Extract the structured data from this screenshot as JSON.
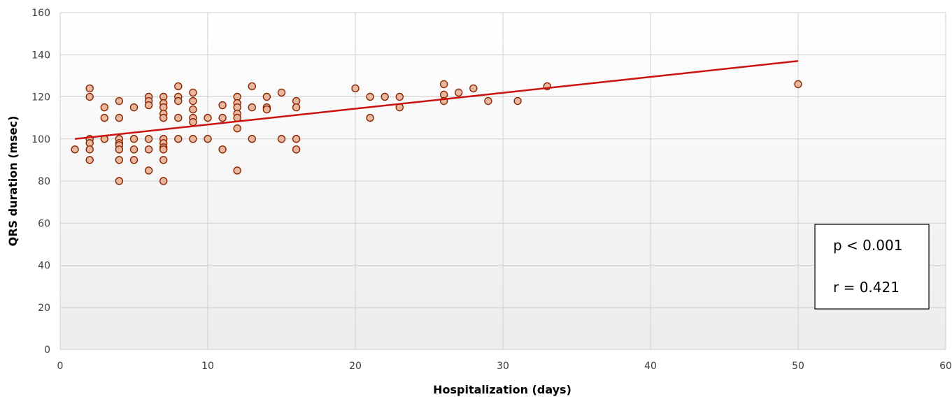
{
  "chart_data": {
    "type": "scatter",
    "title": "",
    "xlabel": "Hospitalization (days)",
    "ylabel": "QRS duration (msec)",
    "xlim": [
      0,
      60
    ],
    "ylim": [
      0,
      160
    ],
    "x_ticks": [
      0,
      10,
      20,
      30,
      40,
      50,
      60
    ],
    "y_ticks": [
      0,
      20,
      40,
      60,
      80,
      100,
      120,
      140,
      160
    ],
    "grid": true,
    "legend": "none",
    "series": [
      {
        "points": [
          [
            1,
            95
          ],
          [
            2,
            124
          ],
          [
            2,
            120
          ],
          [
            2,
            100
          ],
          [
            2,
            98
          ],
          [
            2,
            95
          ],
          [
            2,
            90
          ],
          [
            3,
            115
          ],
          [
            3,
            110
          ],
          [
            3,
            100
          ],
          [
            4,
            118
          ],
          [
            4,
            110
          ],
          [
            4,
            100
          ],
          [
            4,
            98
          ],
          [
            4,
            97
          ],
          [
            4,
            95
          ],
          [
            4,
            90
          ],
          [
            4,
            80
          ],
          [
            5,
            115
          ],
          [
            5,
            100
          ],
          [
            5,
            95
          ],
          [
            5,
            90
          ],
          [
            6,
            120
          ],
          [
            6,
            118
          ],
          [
            6,
            116
          ],
          [
            6,
            100
          ],
          [
            6,
            95
          ],
          [
            6,
            85
          ],
          [
            7,
            120
          ],
          [
            7,
            117
          ],
          [
            7,
            115
          ],
          [
            7,
            112
          ],
          [
            7,
            110
          ],
          [
            7,
            100
          ],
          [
            7,
            98
          ],
          [
            7,
            96
          ],
          [
            7,
            95
          ],
          [
            7,
            90
          ],
          [
            7,
            80
          ],
          [
            8,
            125
          ],
          [
            8,
            120
          ],
          [
            8,
            118
          ],
          [
            8,
            110
          ],
          [
            8,
            100
          ],
          [
            9,
            122
          ],
          [
            9,
            118
          ],
          [
            9,
            114
          ],
          [
            9,
            110
          ],
          [
            9,
            108
          ],
          [
            9,
            100
          ],
          [
            10,
            110
          ],
          [
            10,
            100
          ],
          [
            11,
            116
          ],
          [
            11,
            110
          ],
          [
            11,
            95
          ],
          [
            12,
            120
          ],
          [
            12,
            117
          ],
          [
            12,
            115
          ],
          [
            12,
            112
          ],
          [
            12,
            110
          ],
          [
            12,
            105
          ],
          [
            12,
            85
          ],
          [
            13,
            125
          ],
          [
            13,
            115
          ],
          [
            13,
            100
          ],
          [
            14,
            120
          ],
          [
            14,
            115
          ],
          [
            14,
            114
          ],
          [
            15,
            122
          ],
          [
            15,
            100
          ],
          [
            16,
            118
          ],
          [
            16,
            115
          ],
          [
            16,
            100
          ],
          [
            16,
            95
          ],
          [
            20,
            124
          ],
          [
            21,
            120
          ],
          [
            21,
            110
          ],
          [
            22,
            120
          ],
          [
            23,
            120
          ],
          [
            23,
            115
          ],
          [
            26,
            126
          ],
          [
            26,
            121
          ],
          [
            26,
            118
          ],
          [
            27,
            122
          ],
          [
            28,
            124
          ],
          [
            29,
            118
          ],
          [
            31,
            118
          ],
          [
            33,
            125
          ],
          [
            50,
            126
          ]
        ],
        "color": "#e8b7a0",
        "edge_color": "#8b2500"
      }
    ],
    "trendline": {
      "x": [
        1,
        50
      ],
      "y": [
        100,
        137
      ],
      "color": "#cc1111"
    },
    "annotation": {
      "line1": "p < 0.001",
      "line2": "r = 0.421"
    }
  }
}
